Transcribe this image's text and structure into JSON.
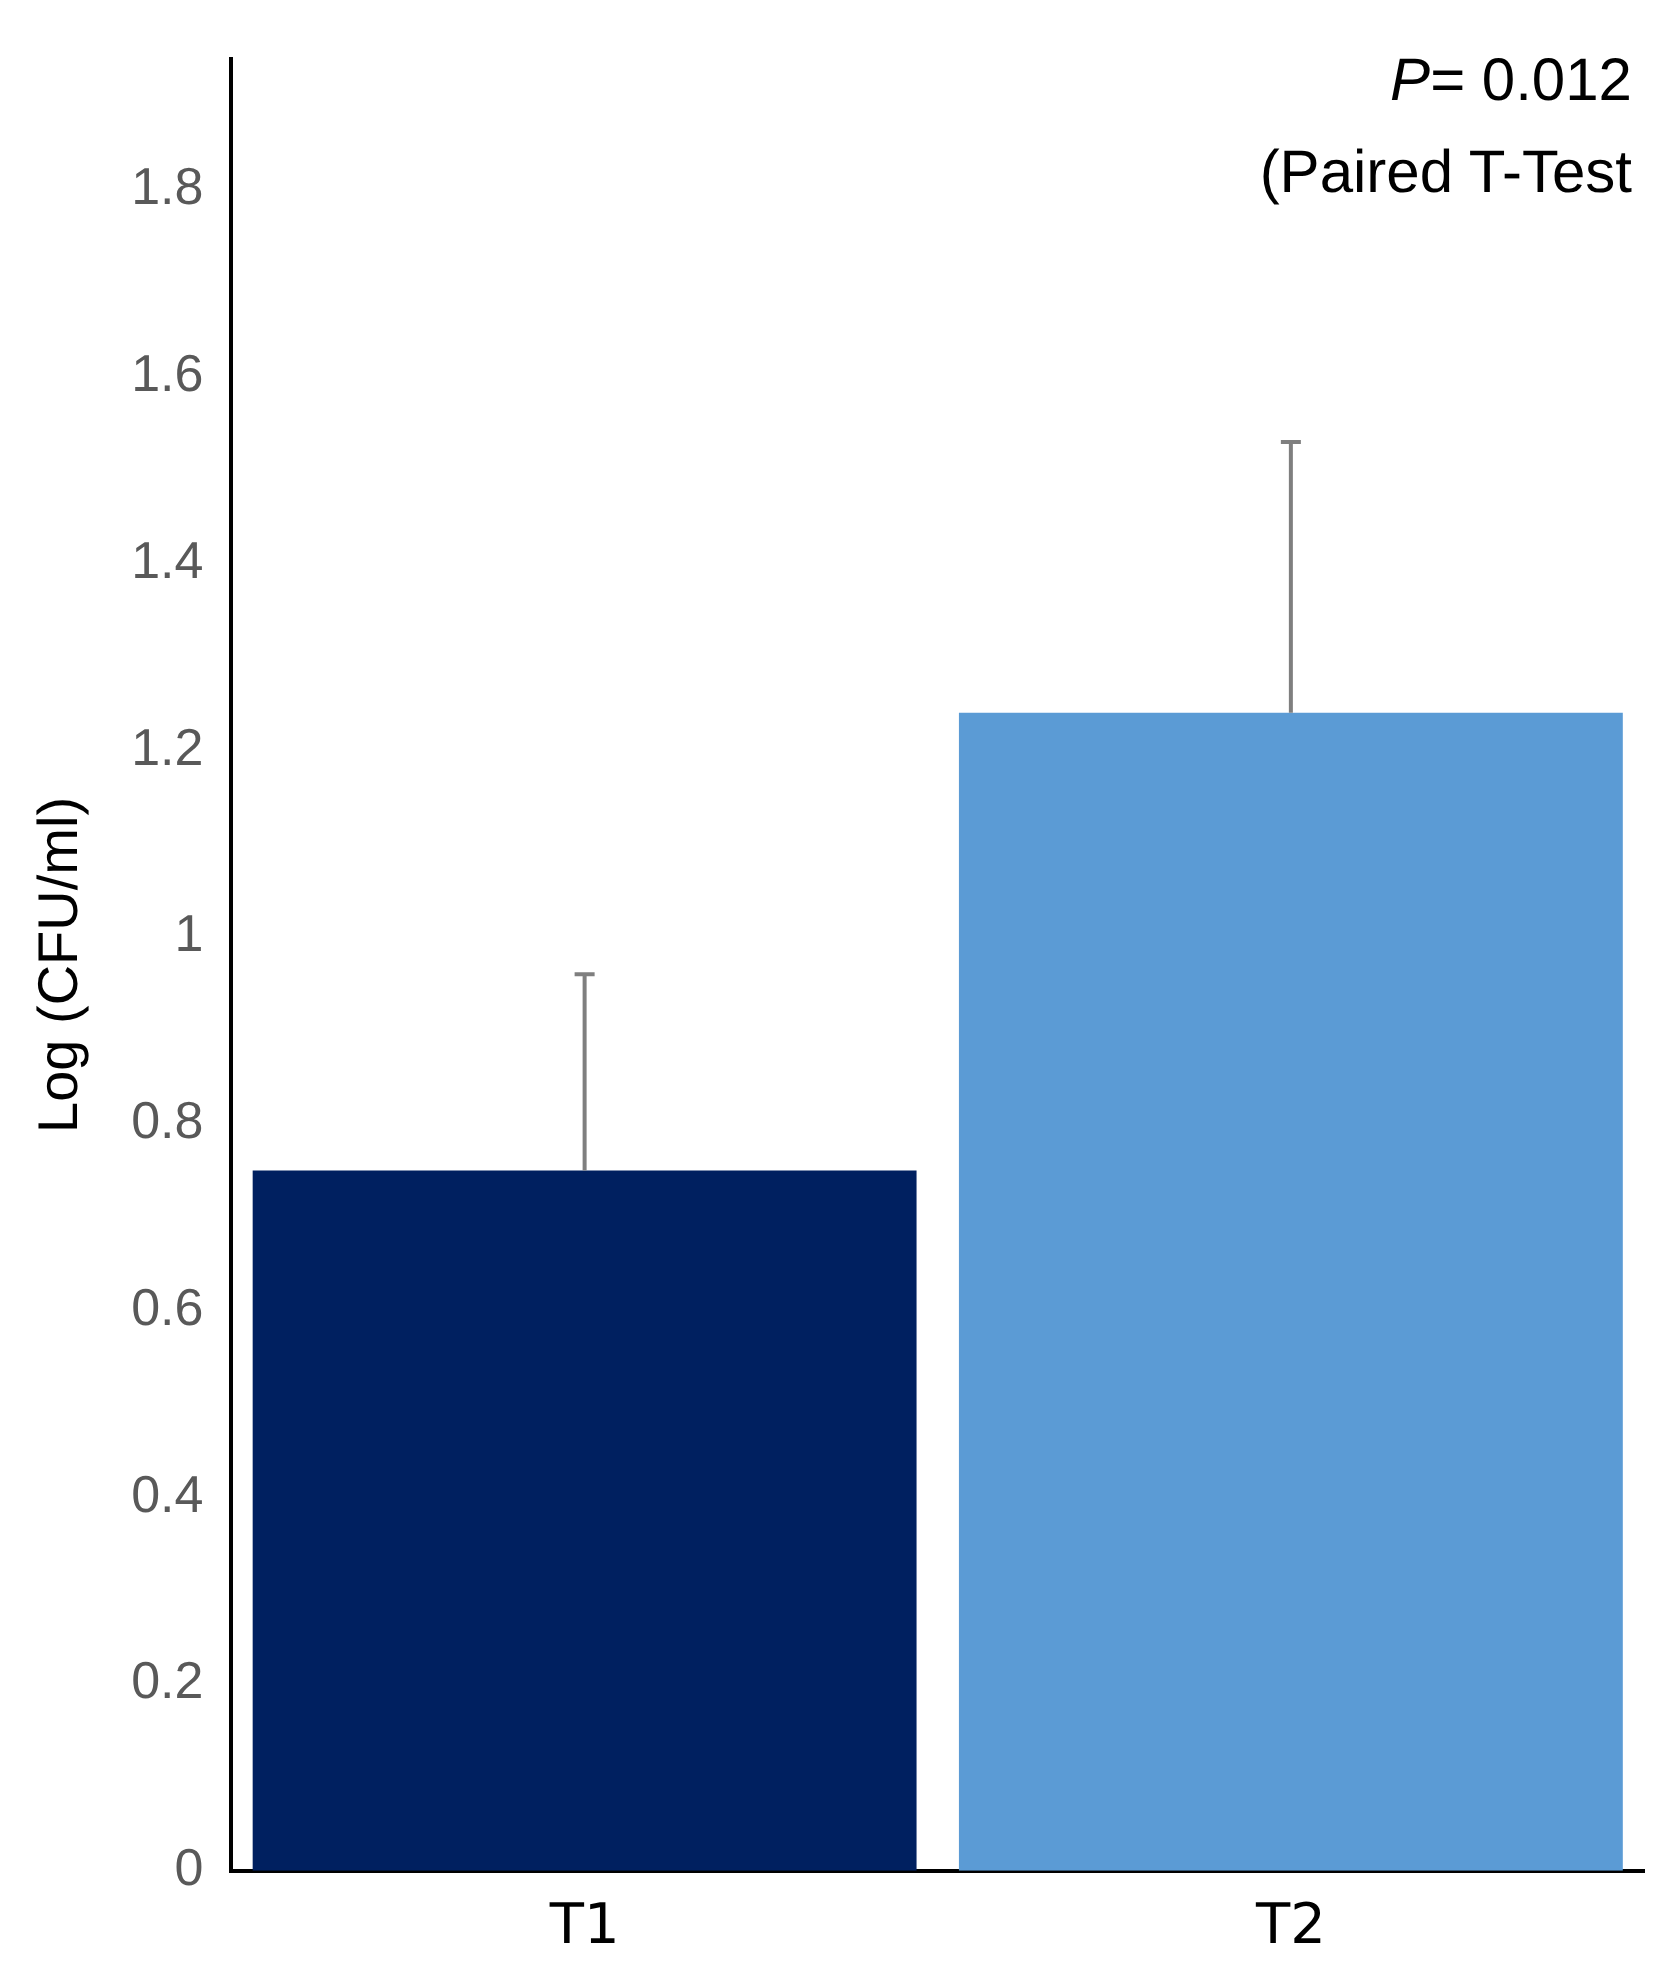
{
  "chart_data": {
    "type": "bar",
    "categories": [
      "T1",
      "T2"
    ],
    "values": [
      0.75,
      1.24
    ],
    "colors": [
      "#002060",
      "#5b9bd5"
    ],
    "errors": [
      [
        0.75,
        0.96
      ],
      [
        1.24,
        1.53
      ]
    ],
    "ylabel": "Log (CFU/ml)",
    "ylim": [
      0,
      1.94
    ],
    "yticks": [
      0,
      0.2,
      0.4,
      0.6,
      0.8,
      1,
      1.2,
      1.4,
      1.6,
      1.8
    ],
    "grid": false,
    "legend": false,
    "annotations": [
      "P= 0.012",
      "(Paired T-Test"
    ]
  }
}
